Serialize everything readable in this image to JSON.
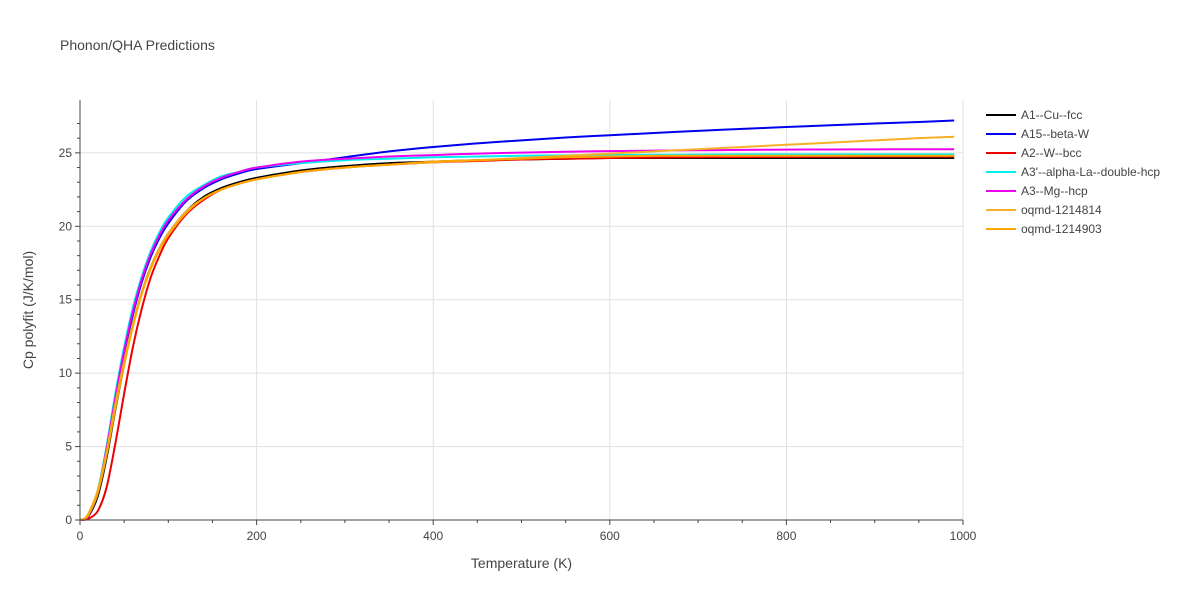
{
  "chart_data": {
    "type": "line",
    "title": "Phonon/QHA Predictions",
    "xlabel": "Temperature (K)",
    "ylabel": "Cp polyfit (J/K/mol)",
    "xlim": [
      0,
      1000
    ],
    "ylim": [
      0,
      28.6
    ],
    "xticks": [
      0,
      200,
      400,
      600,
      800,
      1000
    ],
    "yticks": [
      0,
      5,
      10,
      15,
      20,
      25
    ],
    "grid": true,
    "legend_position": "top-right, outside plot",
    "x": [
      0,
      5,
      10,
      20,
      30,
      40,
      50,
      60,
      70,
      80,
      90,
      100,
      120,
      140,
      160,
      180,
      200,
      250,
      300,
      350,
      400,
      450,
      500,
      550,
      600,
      650,
      700,
      750,
      800,
      850,
      900,
      950,
      990
    ],
    "series": [
      {
        "name": "A1--Cu--fcc",
        "color": "#000000",
        "values": [
          0,
          0.05,
          0.3,
          1.6,
          4.2,
          7.5,
          10.6,
          13.3,
          15.5,
          17.2,
          18.5,
          19.5,
          21.0,
          22.0,
          22.6,
          23.0,
          23.3,
          23.8,
          24.1,
          24.3,
          24.4,
          24.5,
          24.55,
          24.6,
          24.65,
          24.65,
          24.65,
          24.65,
          24.65,
          24.65,
          24.65,
          24.65,
          24.65
        ]
      },
      {
        "name": "A15--beta-W",
        "color": "#0000ee",
        "values": [
          0,
          0.05,
          0.35,
          1.8,
          4.6,
          8.1,
          11.3,
          14.0,
          16.2,
          17.9,
          19.2,
          20.2,
          21.7,
          22.6,
          23.2,
          23.6,
          23.9,
          24.3,
          24.7,
          25.1,
          25.4,
          25.65,
          25.85,
          26.05,
          26.2,
          26.35,
          26.5,
          26.63,
          26.76,
          26.88,
          27.0,
          27.1,
          27.2
        ]
      },
      {
        "name": "A2--W--bcc",
        "color": "#ee0000",
        "values": [
          0,
          0.02,
          0.1,
          0.6,
          2.2,
          5.2,
          8.6,
          11.8,
          14.4,
          16.5,
          18.0,
          19.2,
          20.8,
          21.8,
          22.5,
          22.9,
          23.2,
          23.7,
          24.0,
          24.2,
          24.35,
          24.45,
          24.55,
          24.6,
          24.65,
          24.68,
          24.7,
          24.72,
          24.73,
          24.74,
          24.75,
          24.75,
          24.75
        ]
      },
      {
        "name": "A3'--alpha-La--double-hcp",
        "color": "#00eeee",
        "values": [
          0,
          0.06,
          0.4,
          2.0,
          5.0,
          8.6,
          11.8,
          14.5,
          16.6,
          18.3,
          19.6,
          20.6,
          22.0,
          22.8,
          23.4,
          23.7,
          24.0,
          24.3,
          24.5,
          24.6,
          24.7,
          24.75,
          24.8,
          24.83,
          24.85,
          24.87,
          24.88,
          24.9,
          24.9,
          24.9,
          24.9,
          24.9,
          24.9
        ]
      },
      {
        "name": "A3--Mg--hcp",
        "color": "#ee00ee",
        "values": [
          0,
          0.05,
          0.35,
          1.9,
          4.8,
          8.3,
          11.5,
          14.2,
          16.4,
          18.1,
          19.4,
          20.4,
          21.8,
          22.7,
          23.3,
          23.7,
          24.0,
          24.4,
          24.6,
          24.75,
          24.85,
          24.95,
          25.02,
          25.08,
          25.12,
          25.15,
          25.18,
          25.2,
          25.22,
          25.23,
          25.24,
          25.25,
          25.25
        ]
      },
      {
        "name": "oqmd-1214814",
        "color": "#f5b027",
        "values": [
          0,
          0.1,
          0.5,
          2.0,
          4.6,
          7.9,
          10.8,
          13.4,
          15.5,
          17.2,
          18.5,
          19.5,
          21.0,
          21.9,
          22.5,
          22.9,
          23.2,
          23.7,
          24.0,
          24.2,
          24.35,
          24.5,
          24.65,
          24.8,
          24.95,
          25.1,
          25.25,
          25.4,
          25.55,
          25.7,
          25.85,
          26.0,
          26.1
        ]
      },
      {
        "name": "oqmd-1214903",
        "color": "#ffa500",
        "values": [
          0,
          0.08,
          0.4,
          1.8,
          4.4,
          7.6,
          10.6,
          13.2,
          15.4,
          17.1,
          18.4,
          19.4,
          20.9,
          21.9,
          22.5,
          22.9,
          23.2,
          23.7,
          24.0,
          24.2,
          24.4,
          24.5,
          24.6,
          24.7,
          24.75,
          24.8,
          24.8,
          24.8,
          24.8,
          24.8,
          24.8,
          24.8,
          24.8
        ]
      }
    ]
  }
}
